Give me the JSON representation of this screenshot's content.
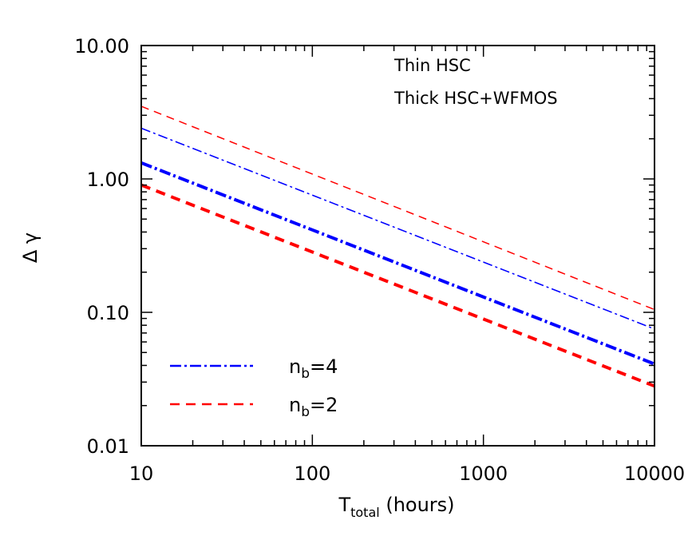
{
  "chart_data": {
    "type": "line",
    "xscale": "log",
    "yscale": "log",
    "xlim": [
      10,
      10000
    ],
    "ylim": [
      0.01,
      10
    ],
    "xlabel": {
      "main": "T",
      "sub": "total",
      "suffix": " (hours)"
    },
    "ylabel": "Δ γ",
    "xticks": [
      {
        "value": 10,
        "label": "10"
      },
      {
        "value": 100,
        "label": "100"
      },
      {
        "value": 1000,
        "label": "1000"
      },
      {
        "value": 10000,
        "label": "10000"
      }
    ],
    "yticks": [
      {
        "value": 0.01,
        "label": "0.01"
      },
      {
        "value": 0.1,
        "label": "0.10"
      },
      {
        "value": 1,
        "label": "1.00"
      },
      {
        "value": 10,
        "label": "10.00"
      }
    ],
    "annotations": [
      "Thin HSC",
      "Thick HSC+WFMOS"
    ],
    "grid": false,
    "legend_placement": "bottom-left",
    "legend": [
      {
        "main": "n",
        "sub": "b",
        "suffix": "=4",
        "color": "#0000ff",
        "style": "dash-dot"
      },
      {
        "main": "n",
        "sub": "b",
        "suffix": "=2",
        "color": "#ff0000",
        "style": "dashed"
      }
    ],
    "series": [
      {
        "nb": 4,
        "survey": "Thin HSC",
        "color": "#0000ff",
        "style": "dash-dot",
        "weight": "thin",
        "x": [
          10,
          10000
        ],
        "y": [
          2.4,
          0.075
        ]
      },
      {
        "nb": 4,
        "survey": "Thick HSC+WFMOS",
        "color": "#0000ff",
        "style": "dash-dot",
        "weight": "thick",
        "x": [
          10,
          10000
        ],
        "y": [
          1.32,
          0.041
        ]
      },
      {
        "nb": 2,
        "survey": "Thin HSC",
        "color": "#ff0000",
        "style": "dashed",
        "weight": "thin",
        "x": [
          10,
          10000
        ],
        "y": [
          3.5,
          0.105
        ]
      },
      {
        "nb": 2,
        "survey": "Thick HSC+WFMOS",
        "color": "#ff0000",
        "style": "dashed",
        "weight": "thick",
        "x": [
          10,
          10000
        ],
        "y": [
          0.9,
          0.028
        ]
      }
    ]
  }
}
